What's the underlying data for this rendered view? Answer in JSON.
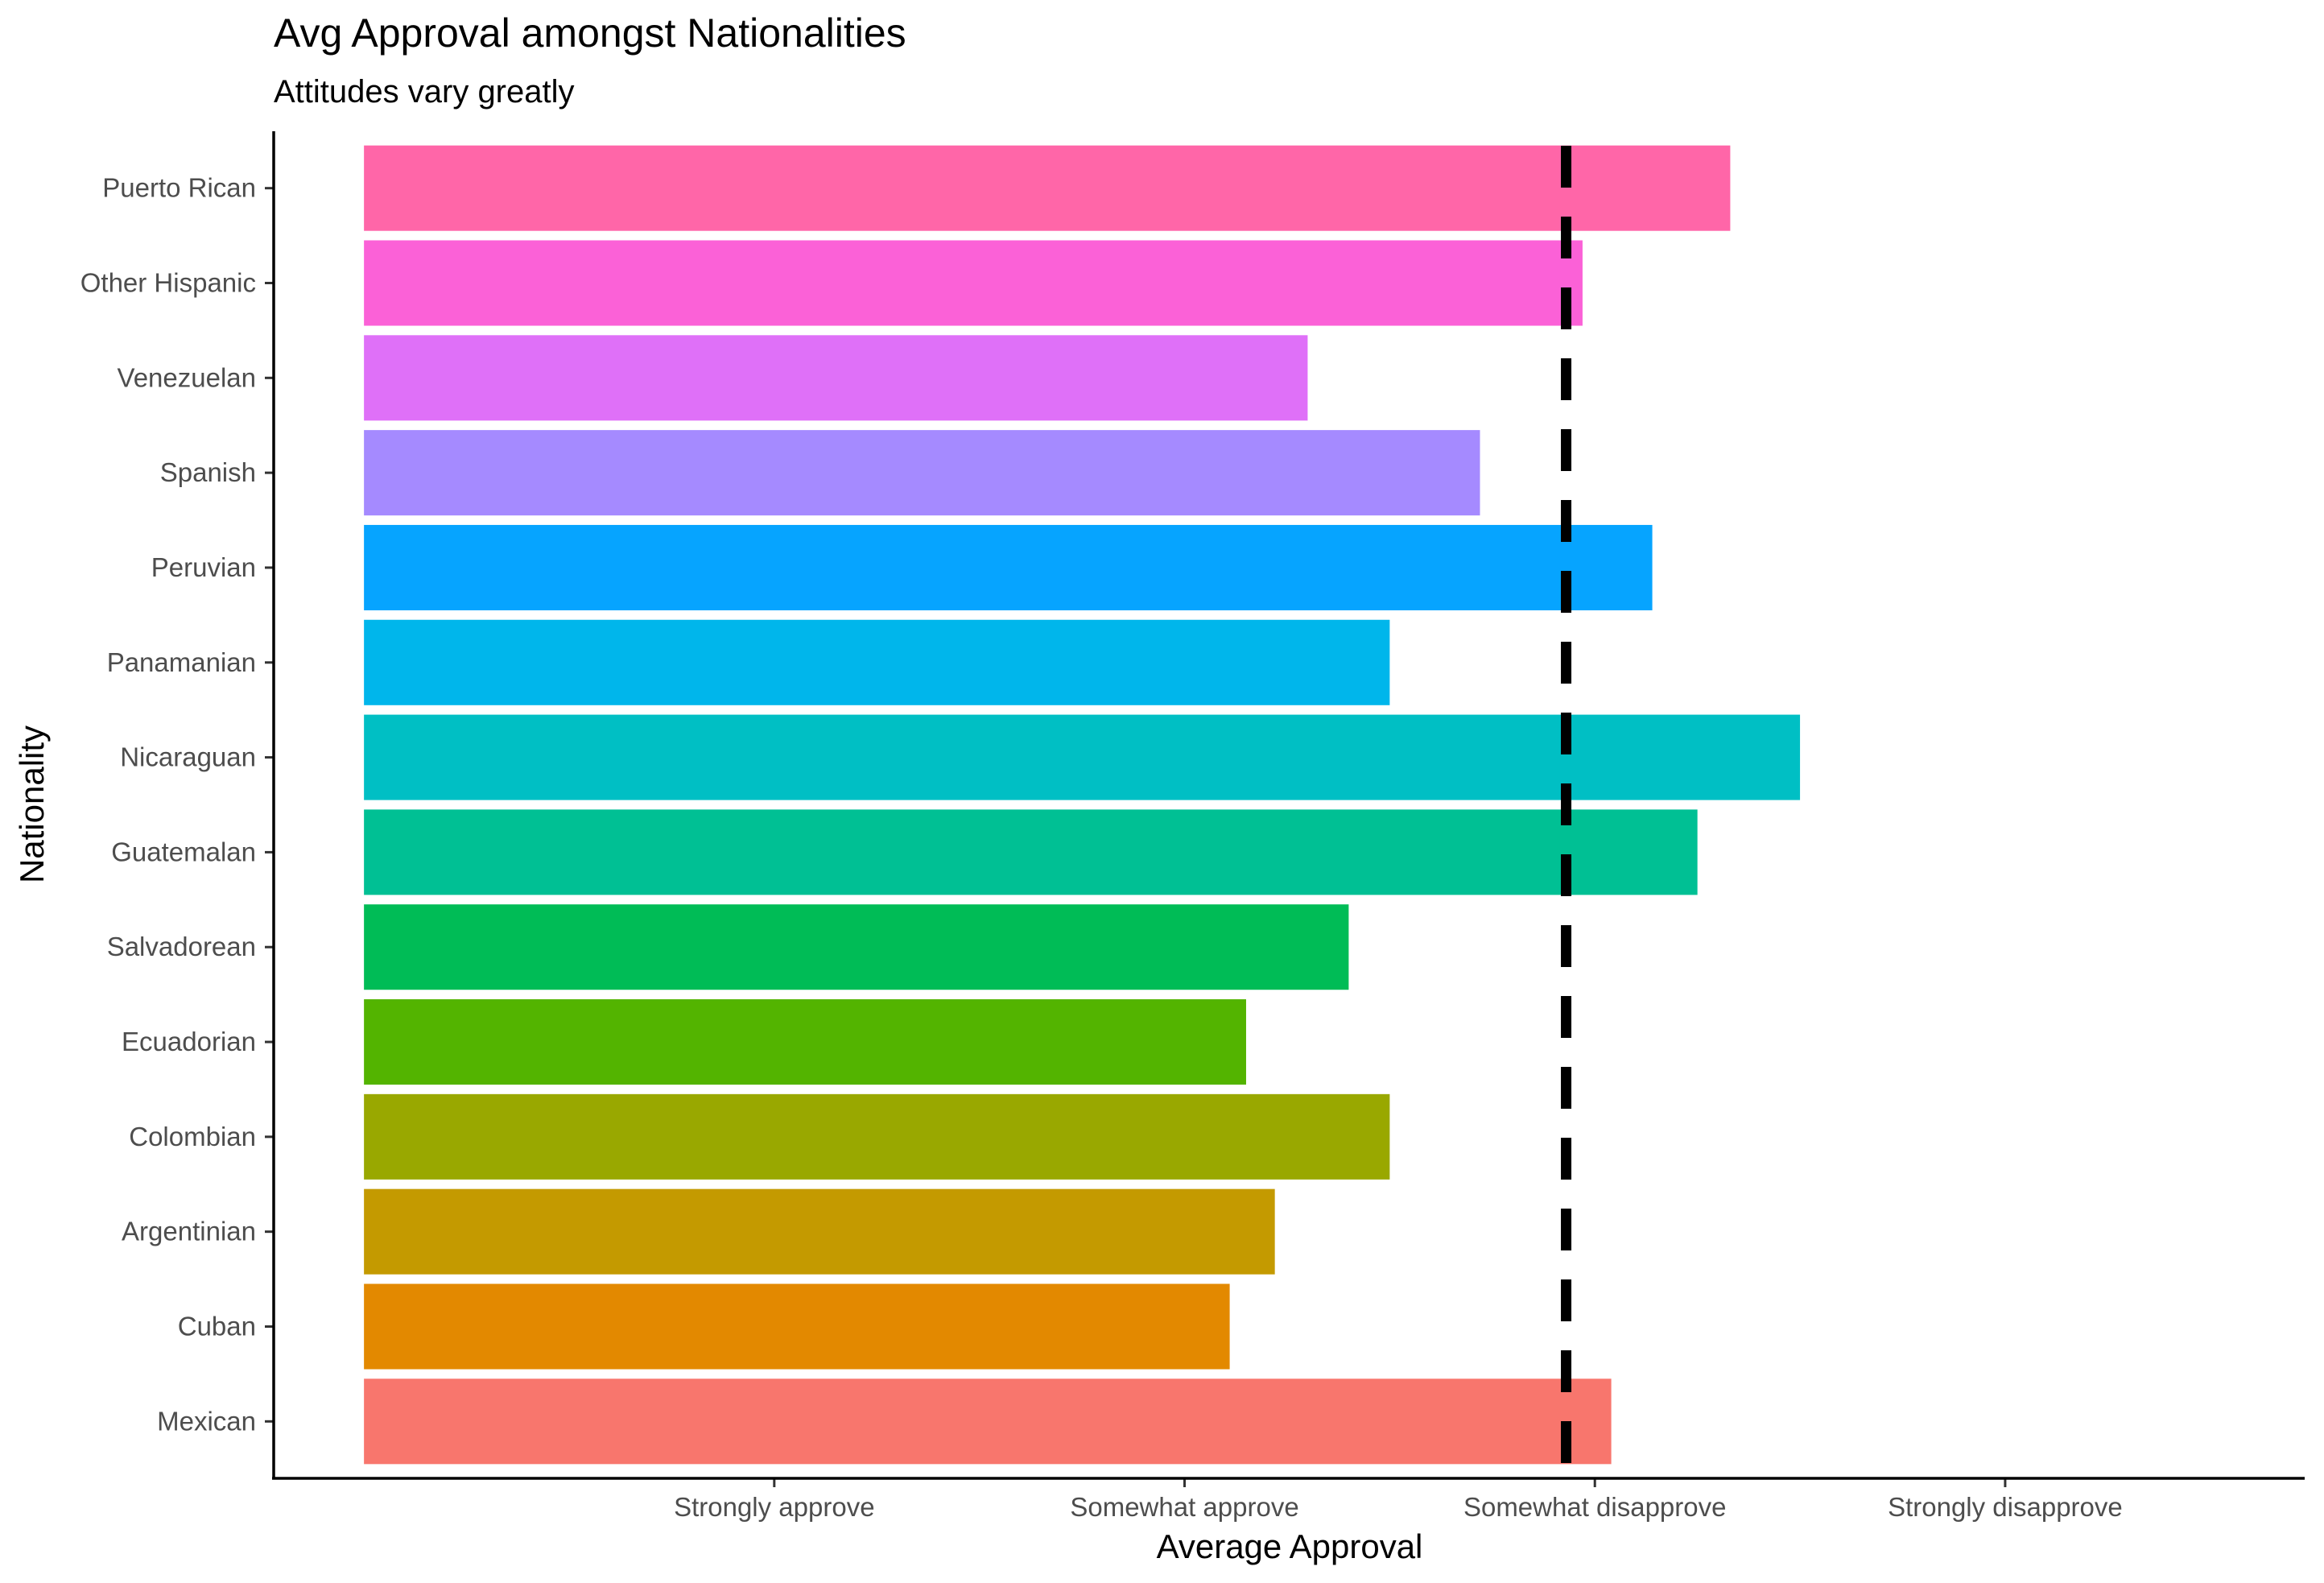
{
  "chart_data": {
    "type": "bar",
    "orientation": "horizontal",
    "title": "Avg Approval amongst Nationalities",
    "subtitle": "Attitudes vary greatly",
    "xlabel": "Average Approval",
    "ylabel": "Nationality",
    "x_tick_values": [
      1,
      2,
      3,
      4
    ],
    "x_tick_labels": [
      "Strongly approve",
      "Somewhat approve",
      "Somewhat disapprove",
      "Strongly disapprove"
    ],
    "xlim": [
      -0.22,
      4.73
    ],
    "grid": false,
    "legend": "none",
    "reference_line": {
      "value": 2.93,
      "style": "dashed",
      "color": "#000000"
    },
    "categories": [
      "Mexican",
      "Cuban",
      "Argentinian",
      "Colombian",
      "Ecuadorian",
      "Salvadorean",
      "Guatemalan",
      "Nicaraguan",
      "Panamanian",
      "Peruvian",
      "Spanish",
      "Venezuelan",
      "Other Hispanic",
      "Puerto Rican"
    ],
    "values": [
      3.04,
      2.11,
      2.22,
      2.5,
      2.15,
      2.4,
      3.25,
      3.5,
      2.5,
      3.14,
      2.72,
      2.3,
      2.97,
      3.33
    ],
    "colors": [
      "#F8766D",
      "#E38900",
      "#C49A00",
      "#99A800",
      "#53B400",
      "#00BC56",
      "#00C094",
      "#00BFC4",
      "#00B6EB",
      "#06A4FF",
      "#A58AFF",
      "#DF70F8",
      "#FB61D7",
      "#FF66A8"
    ]
  }
}
